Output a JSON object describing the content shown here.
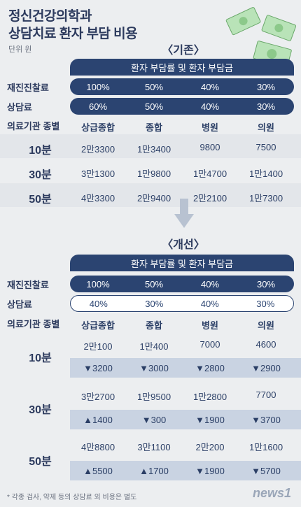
{
  "title": {
    "line1": "정신건강의학과",
    "line2": "상담치료 환자 부담 비용"
  },
  "unit": "단위 원",
  "before": {
    "section_label": "〈기존〉",
    "header": "환자 부담률 및 환자 부담금",
    "row_labels": {
      "rediag": "재진진찰료",
      "counsel": "상담료",
      "type": "의료기관 종별"
    },
    "rediag": [
      "100%",
      "50%",
      "40%",
      "30%"
    ],
    "counsel": [
      "60%",
      "50%",
      "40%",
      "30%"
    ],
    "types": [
      "상급종합",
      "종합",
      "병원",
      "의원"
    ],
    "rows": [
      {
        "label": "10분",
        "values": [
          "2만3300",
          "1만3400",
          "9800",
          "7500"
        ]
      },
      {
        "label": "30분",
        "values": [
          "3만1300",
          "1만9800",
          "1만4700",
          "1만1400"
        ]
      },
      {
        "label": "50분",
        "values": [
          "4만3300",
          "2만9400",
          "2만2100",
          "1만7300"
        ]
      }
    ]
  },
  "after": {
    "section_label": "〈개선〉",
    "header": "환자 부담률 및 환자 부담금",
    "row_labels": {
      "rediag": "재진진찰료",
      "counsel": "상담료",
      "type": "의료기관 종별"
    },
    "rediag": [
      "100%",
      "50%",
      "40%",
      "30%"
    ],
    "counsel": [
      "40%",
      "30%",
      "40%",
      "30%"
    ],
    "types": [
      "상급종합",
      "종합",
      "병원",
      "의원"
    ],
    "rows": [
      {
        "label": "10분",
        "values": [
          "2만100",
          "1만400",
          "7000",
          "4600"
        ],
        "changes": [
          "▼3200",
          "▼3000",
          "▼2800",
          "▼2900"
        ]
      },
      {
        "label": "30분",
        "values": [
          "3만2700",
          "1만9500",
          "1만2800",
          "7700"
        ],
        "changes": [
          "▲1400",
          "▼300",
          "▼1900",
          "▼3700"
        ]
      },
      {
        "label": "50분",
        "values": [
          "4만8800",
          "3만1100",
          "2만200",
          "1만1600"
        ],
        "changes": [
          "▲5500",
          "▲1700",
          "▼1900",
          "▼5700"
        ]
      }
    ]
  },
  "footer": "* 각종 검사, 약제 등의 상담료 외 비용은 별도",
  "logo": "news1",
  "colors": {
    "navy": "#2b4471",
    "band": "#c9d3e2",
    "background": "#eceef0"
  }
}
